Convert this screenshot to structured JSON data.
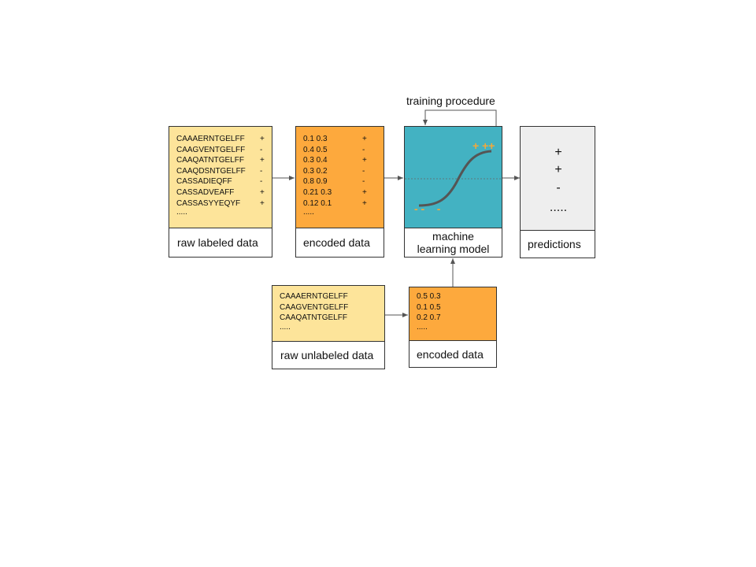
{
  "training_label": "training procedure",
  "raw_labeled": {
    "rows": [
      {
        "seq": "CAAAERNTGELFF",
        "label": "+"
      },
      {
        "seq": "CAAGVENTGELFF",
        "label": "-"
      },
      {
        "seq": "CAAQATNTGELFF",
        "label": "+"
      },
      {
        "seq": "CAAQDSNTGELFF",
        "label": "-"
      },
      {
        "seq": "CASSADIEQFF",
        "label": "-"
      },
      {
        "seq": "CASSADVEAFF",
        "label": "+"
      },
      {
        "seq": "CASSASYYEQYF",
        "label": "+"
      }
    ],
    "more": ".....",
    "caption": "raw labeled data"
  },
  "encoded_labeled": {
    "rows": [
      {
        "vec": "0.1 0.3",
        "label": "+"
      },
      {
        "vec": "0.4 0.5",
        "label": "-"
      },
      {
        "vec": "0.3 0.4",
        "label": "+"
      },
      {
        "vec": "0.3 0.2",
        "label": "-"
      },
      {
        "vec": "0.8 0.9",
        "label": "-"
      },
      {
        "vec": "0.21 0.3",
        "label": "+"
      },
      {
        "vec": "0.12 0.1",
        "label": "+"
      }
    ],
    "more": ".....",
    "caption": "encoded data"
  },
  "model": {
    "caption_line1": "machine",
    "caption_line2": "learning model",
    "plus_marks": "+ ++",
    "minus_marks": "- -    -"
  },
  "predictions": {
    "items": [
      "+",
      "+",
      "-",
      "....."
    ],
    "caption": "predictions"
  },
  "raw_unlabeled": {
    "rows": [
      "CAAAERNTGELFF",
      "CAAGVENTGELFF",
      "CAAQATNTGELFF"
    ],
    "more": ".....",
    "caption": "raw unlabeled data"
  },
  "encoded_unlabeled": {
    "rows": [
      "0.5 0.3",
      "0.1 0.5",
      "0.2 0.7"
    ],
    "more": ".....",
    "caption": "encoded data"
  },
  "colors": {
    "light_orange": "#fde49a",
    "orange": "#fda93d",
    "teal": "#43b2c2",
    "gray": "#eeeeee",
    "curve": "#555555",
    "marks": "#f4a83a"
  }
}
